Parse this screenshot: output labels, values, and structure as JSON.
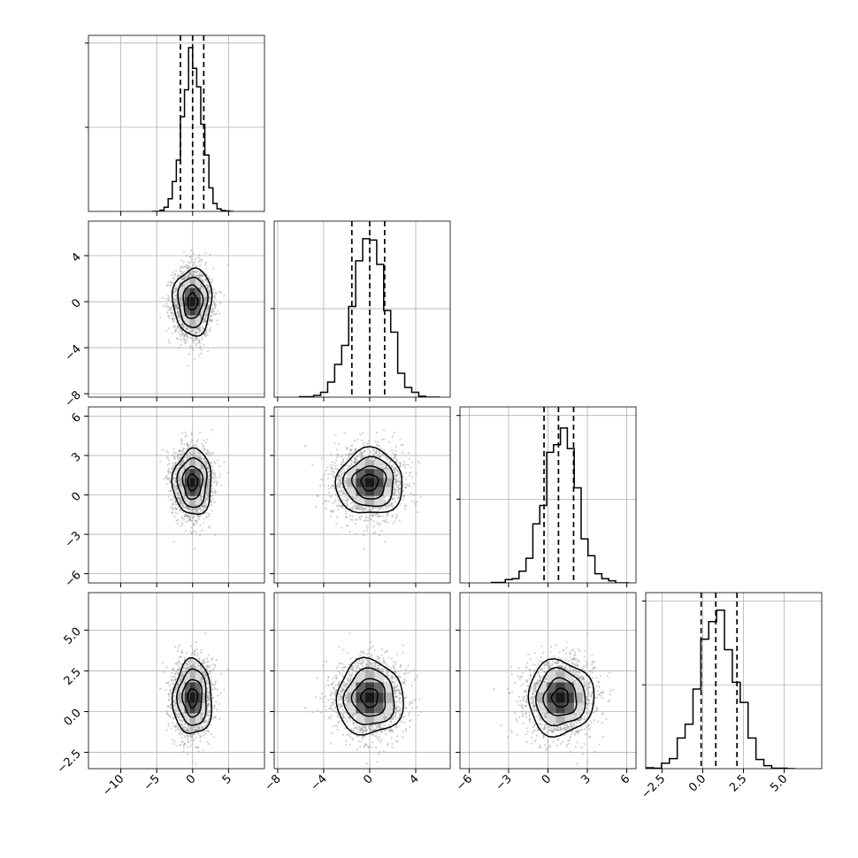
{
  "chart_data": {
    "type": "corner",
    "n_params": 4,
    "parameters": [
      {
        "index": 0,
        "range": [
          -14.5,
          10.0
        ],
        "ticks": [
          -10,
          -5,
          0,
          5
        ],
        "tick_labels": [
          "−10",
          "−5",
          "0",
          "5"
        ],
        "mean": 0.0,
        "std": 1.35,
        "quantiles": [
          -1.7,
          0.0,
          1.55
        ],
        "hist_peak_fraction": 0.93
      },
      {
        "index": 1,
        "range": [
          -8.3,
          7.0
        ],
        "ticks": [
          -8,
          -4,
          0,
          4
        ],
        "tick_labels": [
          "−8",
          "−4",
          "0",
          "4"
        ],
        "mean": 0.0,
        "std": 1.45,
        "quantiles": [
          -1.55,
          0.0,
          1.3
        ],
        "hist_peak_fraction": 0.9
      },
      {
        "index": 2,
        "range": [
          -6.7,
          6.7
        ],
        "ticks": [
          -6,
          -3,
          0,
          3,
          6
        ],
        "tick_labels": [
          "−6",
          "−3",
          "0",
          "3",
          "6"
        ],
        "mean": 0.95,
        "std": 1.25,
        "quantiles": [
          -0.3,
          0.8,
          1.95
        ],
        "hist_peak_fraction": 0.88
      },
      {
        "index": 3,
        "range": [
          -3.5,
          7.3
        ],
        "ticks": [
          -2.5,
          0.0,
          2.5,
          5.0
        ],
        "tick_labels": [
          "−2.5",
          "0.0",
          "2.5",
          "5.0"
        ],
        "mean": 0.85,
        "std": 1.15,
        "quantiles": [
          -0.1,
          0.8,
          2.1
        ],
        "hist_peak_fraction": 0.9
      }
    ],
    "contour_levels_sigma": [
      0.5,
      1.0,
      1.5,
      2.0
    ],
    "grid": true,
    "quantiles_style": "dashed"
  }
}
